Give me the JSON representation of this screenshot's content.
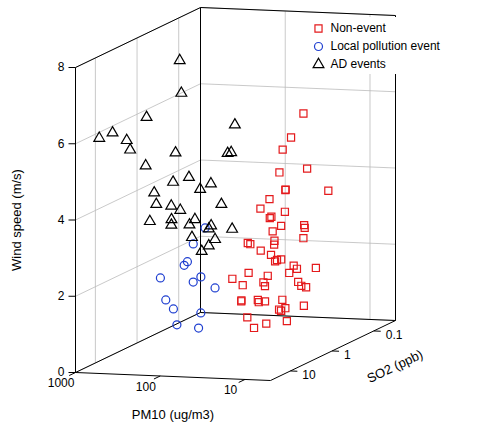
{
  "chart_data": {
    "type": "scatter",
    "xlabel": "PM10 (ug/m3)",
    "ylabel": "Wind speed (m/s)",
    "zlabel": "SO2 (ppb)",
    "log": true,
    "xlim": [
      1000,
      5
    ],
    "xticks": [
      1000,
      100,
      10
    ],
    "ylim": [
      0,
      8
    ],
    "yticks": [
      0,
      2,
      4,
      6,
      8
    ],
    "zlim": [
      30,
      0.03
    ],
    "zticks": [
      10,
      1,
      0.1
    ],
    "grid": true,
    "legend": "top-right",
    "series": [
      {
        "name": "Non-event",
        "color": "#e41a1c",
        "marker": "square",
        "x": [
          20,
          15,
          25,
          18,
          30,
          12,
          22,
          16,
          28,
          19,
          24,
          14,
          33,
          17,
          21,
          26,
          13,
          35,
          11,
          23,
          29,
          16,
          19,
          40,
          27,
          15,
          20,
          31,
          18,
          12,
          25,
          14,
          22,
          10,
          30,
          17,
          9,
          24,
          20,
          13,
          36,
          28,
          21,
          16,
          26,
          19,
          11,
          32,
          23,
          15,
          8,
          18,
          27,
          34
        ],
        "y": [
          1.0,
          1.2,
          0.9,
          1.5,
          1.3,
          1.1,
          1.8,
          2.0,
          2.2,
          1.6,
          2.5,
          2.8,
          1.9,
          3.0,
          3.2,
          2.7,
          2.3,
          2.1,
          1.7,
          3.5,
          3.4,
          3.3,
          2.9,
          1.4,
          1.1,
          0.8,
          2.4,
          2.6,
          3.6,
          2.6,
          4.0,
          4.3,
          4.6,
          3.9,
          5.0,
          5.5,
          4.8,
          5.8,
          1.3,
          1.9,
          2.9,
          1.6,
          2.0,
          1.0,
          3.0,
          4.1,
          2.2,
          3.7,
          1.2,
          3.1,
          2.0,
          0.9,
          2.3,
          1.7
        ],
        "z": [
          1,
          2,
          0.5,
          3,
          1.5,
          0.8,
          2,
          1,
          0.7,
          4,
          1.2,
          0.6,
          3,
          2,
          0.9,
          1.8,
          5,
          0.4,
          1.1,
          1.4,
          0.8,
          2.5,
          0.3,
          2.2,
          3.5,
          1.3,
          6,
          0.6,
          1.0,
          2.8,
          0.5,
          1.6,
          0.9,
          0.3,
          0.4,
          0.8,
          1.2,
          0.2,
          0.25,
          0.35,
          1.9,
          4.5,
          0.45,
          7,
          3.2,
          2.1,
          1.4,
          1.2,
          0.7,
          0.5,
          2.5,
          2.8,
          8,
          0.9
        ]
      },
      {
        "name": "Local pollution event",
        "color": "#1f3fd0",
        "marker": "circle",
        "x": [
          80,
          100,
          70,
          120,
          90,
          110,
          75,
          130,
          95,
          60,
          140,
          85,
          105
        ],
        "y": [
          2.2,
          2.6,
          1.8,
          1.5,
          3.1,
          2.0,
          2.8,
          1.0,
          0.8,
          1.4,
          2.4,
          3.4,
          1.9
        ],
        "z": [
          5,
          8,
          3,
          10,
          6,
          4,
          12,
          7,
          4,
          9,
          15,
          3.5,
          20
        ]
      },
      {
        "name": "AD events",
        "color": "#000000",
        "marker": "triangle",
        "x": [
          900,
          700,
          600,
          500,
          400,
          350,
          300,
          250,
          200,
          150,
          180,
          250,
          300,
          220,
          160,
          120,
          130,
          200,
          140,
          110,
          100,
          260,
          320,
          180,
          90,
          150,
          230,
          280,
          190,
          120,
          170,
          110,
          450
        ],
        "y": [
          5.9,
          6.0,
          5.7,
          5.5,
          5.0,
          7.4,
          6.6,
          5.2,
          4.5,
          4.2,
          3.8,
          3.5,
          4.0,
          3.2,
          3.0,
          2.8,
          3.6,
          2.9,
          4.8,
          5.6,
          3.3,
          4.4,
          3.6,
          4.1,
          3.0,
          2.6,
          3.9,
          3.3,
          4.6,
          4.9,
          3.4,
          2.7,
          6.2
        ],
        "z": [
          10,
          8,
          5,
          6,
          4,
          0.8,
          1,
          2,
          1.5,
          0.8,
          3,
          2.5,
          4,
          1.2,
          2,
          1,
          0.6,
          0.5,
          0.3,
          0.4,
          1.8,
          6,
          5,
          1,
          0.7,
          0.9,
          3,
          2,
          4,
          0.5,
          1.5,
          2.5,
          3
        ]
      }
    ]
  }
}
